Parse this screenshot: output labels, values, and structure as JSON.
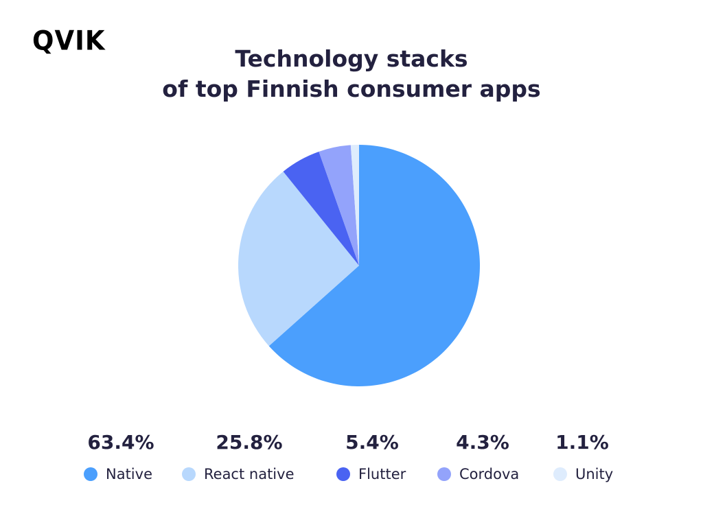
{
  "brand": {
    "logo_text": "QVIK"
  },
  "chart_data": {
    "type": "pie",
    "title_lines": [
      "Technology stacks",
      "of top Finnish consumer apps"
    ],
    "slices": [
      {
        "label": "Native",
        "value": 63.4,
        "value_label": "63.4%",
        "color": "#4b9ffd"
      },
      {
        "label": "React native",
        "value": 25.8,
        "value_label": "25.8%",
        "color": "#b8d8fd"
      },
      {
        "label": "Flutter",
        "value": 5.4,
        "value_label": "5.4%",
        "color": "#4a63f2"
      },
      {
        "label": "Cordova",
        "value": 4.3,
        "value_label": "4.3%",
        "color": "#93a3fb"
      },
      {
        "label": "Unity",
        "value": 1.1,
        "value_label": "1.1%",
        "color": "#deecfd"
      }
    ],
    "legend_position": "bottom",
    "start_angle": "12 o'clock",
    "direction": "clockwise"
  }
}
